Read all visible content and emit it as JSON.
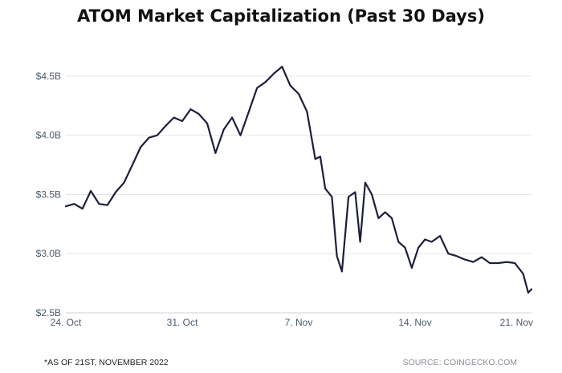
{
  "title": "ATOM Market Capitalization (Past 30 Days)",
  "footnote": "*AS OF 21ST, NOVEMBER 2022",
  "source": "SOURCE: COINGECKO.COM",
  "chart_data": {
    "type": "line",
    "title": "ATOM Market Capitalization (Past 30 Days)",
    "xlabel": "",
    "ylabel": "",
    "x_range_days": [
      24,
      52
    ],
    "ylim": [
      2.5,
      4.75
    ],
    "y_ticks": [
      {
        "value": 2.5,
        "label": "$2.5B"
      },
      {
        "value": 3.0,
        "label": "$3.0B"
      },
      {
        "value": 3.5,
        "label": "$3.5B"
      },
      {
        "value": 4.0,
        "label": "$4.0B"
      },
      {
        "value": 4.5,
        "label": "$4.5B"
      }
    ],
    "x_ticks": [
      {
        "value": 24,
        "label": "24. Oct"
      },
      {
        "value": 31,
        "label": "31. Oct"
      },
      {
        "value": 38,
        "label": "7. Nov"
      },
      {
        "value": 45,
        "label": "14. Nov"
      },
      {
        "value": 52,
        "label": "21. Nov"
      }
    ],
    "grid": "horizontal",
    "legend": "none",
    "line_color": "#1c1f3a",
    "series": [
      {
        "name": "",
        "x": [
          24.0,
          24.5,
          25.0,
          25.5,
          26.0,
          26.5,
          27.0,
          27.5,
          28.0,
          28.5,
          29.0,
          29.5,
          30.0,
          30.5,
          31.0,
          31.5,
          32.0,
          32.5,
          33.0,
          33.5,
          34.0,
          34.5,
          35.0,
          35.5,
          36.0,
          36.5,
          37.0,
          37.5,
          38.0,
          38.5,
          39.0,
          39.3,
          39.6,
          40.0,
          40.3,
          40.6,
          41.0,
          41.4,
          41.7,
          42.0,
          42.4,
          42.8,
          43.2,
          43.6,
          44.0,
          44.4,
          44.8,
          45.2,
          45.6,
          46.0,
          46.5,
          47.0,
          47.5,
          48.0,
          48.5,
          49.0,
          49.5,
          50.0,
          50.5,
          51.0,
          51.5,
          51.8,
          52.0
        ],
        "values": [
          3.4,
          3.42,
          3.38,
          3.53,
          3.42,
          3.41,
          3.52,
          3.6,
          3.75,
          3.9,
          3.98,
          4.0,
          4.08,
          4.15,
          4.12,
          4.22,
          4.18,
          4.1,
          3.85,
          4.05,
          4.15,
          4.0,
          4.2,
          4.4,
          4.45,
          4.52,
          4.58,
          4.42,
          4.35,
          4.2,
          3.8,
          3.82,
          3.55,
          3.48,
          2.98,
          2.85,
          3.48,
          3.52,
          3.1,
          3.6,
          3.5,
          3.3,
          3.35,
          3.3,
          3.1,
          3.05,
          2.88,
          3.05,
          3.12,
          3.1,
          3.15,
          3.0,
          2.98,
          2.95,
          2.93,
          2.97,
          2.92,
          2.92,
          2.93,
          2.92,
          2.83,
          2.67,
          2.7
        ]
      }
    ]
  }
}
